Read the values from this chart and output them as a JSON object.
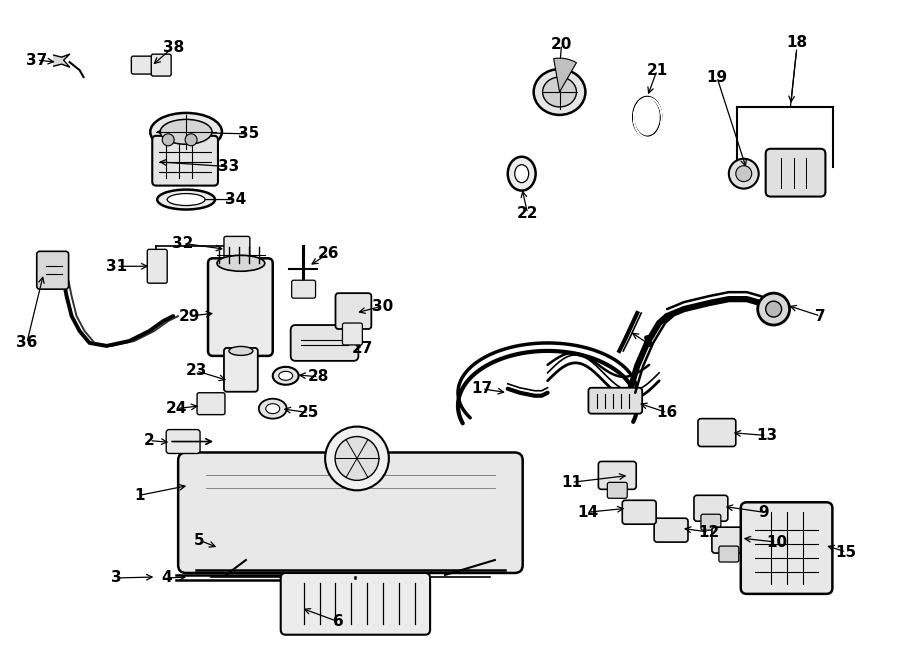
{
  "bg_color": "#ffffff",
  "line_color": "#000000",
  "fig_width": 9.0,
  "fig_height": 6.61,
  "lw_main": 1.3,
  "lw_thin": 0.8,
  "lw_thick": 2.0,
  "label_fontsize": 11,
  "label_fontweight": "bold",
  "component_fill": "#ffffff",
  "component_fill_light": "#f5f5f5",
  "component_fill_gray": "#e8e8e8"
}
